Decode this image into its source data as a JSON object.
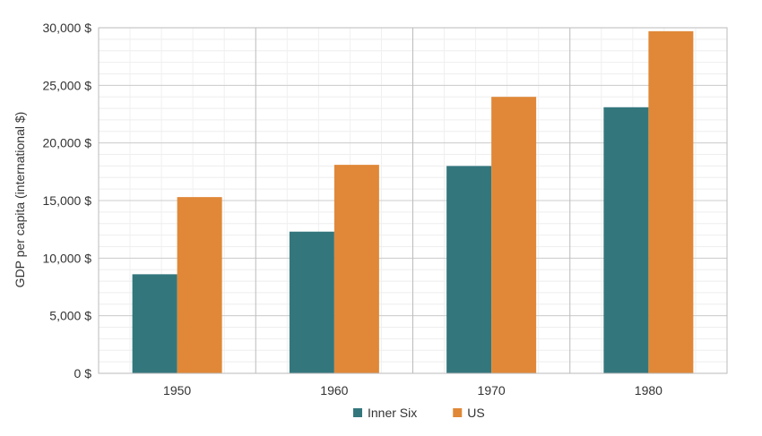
{
  "chart_data": {
    "type": "bar",
    "title": "",
    "xlabel": "",
    "ylabel": "GDP per capita (international $)",
    "categories": [
      "1950",
      "1960",
      "1970",
      "1980"
    ],
    "series": [
      {
        "name": "Inner Six",
        "color": "#33777D",
        "values": [
          8600,
          12300,
          18000,
          23100
        ]
      },
      {
        "name": "US",
        "color": "#E08838",
        "values": [
          15300,
          18100,
          24000,
          29700
        ]
      }
    ],
    "ylim": [
      0,
      30000
    ],
    "yticks": [
      0,
      5000,
      10000,
      15000,
      20000,
      25000,
      30000
    ],
    "ytick_labels": [
      "0 $",
      "5,000 $",
      "10,000 $",
      "15,000 $",
      "20,000 $",
      "25,000 $",
      "30,000 $"
    ],
    "minor_grid_step": 1000,
    "grid": true,
    "legend_position": "bottom-center"
  }
}
